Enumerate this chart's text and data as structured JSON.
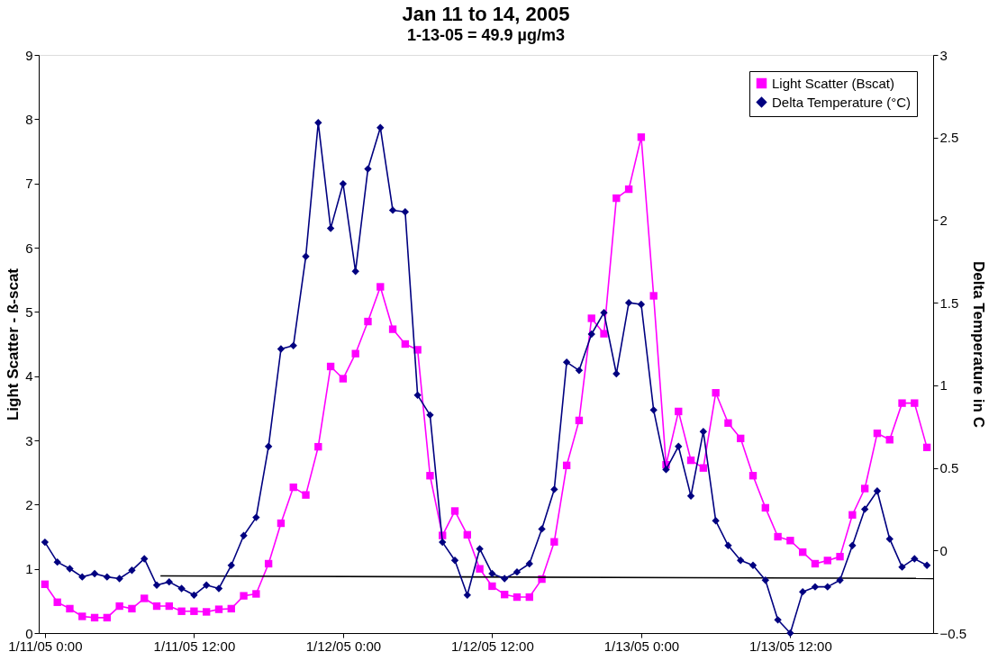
{
  "chart_data": {
    "type": "line",
    "title": "Jan 11 to 14, 2005",
    "subtitle": "1-13-05 = 49.9 µg/m3",
    "ylabel": "Light Scatter - ß-scat",
    "y2label": "Delta Temperature in C",
    "x": [
      "2005-01-11T00:00",
      "2005-01-11T01:00",
      "2005-01-11T02:00",
      "2005-01-11T03:00",
      "2005-01-11T04:00",
      "2005-01-11T05:00",
      "2005-01-11T06:00",
      "2005-01-11T07:00",
      "2005-01-11T08:00",
      "2005-01-11T09:00",
      "2005-01-11T10:00",
      "2005-01-11T11:00",
      "2005-01-11T12:00",
      "2005-01-11T13:00",
      "2005-01-11T14:00",
      "2005-01-11T15:00",
      "2005-01-11T16:00",
      "2005-01-11T17:00",
      "2005-01-11T18:00",
      "2005-01-11T19:00",
      "2005-01-11T20:00",
      "2005-01-11T21:00",
      "2005-01-11T22:00",
      "2005-01-11T23:00",
      "2005-01-12T00:00",
      "2005-01-12T01:00",
      "2005-01-12T02:00",
      "2005-01-12T03:00",
      "2005-01-12T04:00",
      "2005-01-12T05:00",
      "2005-01-12T06:00",
      "2005-01-12T07:00",
      "2005-01-12T08:00",
      "2005-01-12T09:00",
      "2005-01-12T10:00",
      "2005-01-12T11:00",
      "2005-01-12T12:00",
      "2005-01-12T13:00",
      "2005-01-12T14:00",
      "2005-01-12T15:00",
      "2005-01-12T16:00",
      "2005-01-12T17:00",
      "2005-01-12T18:00",
      "2005-01-12T19:00",
      "2005-01-12T20:00",
      "2005-01-12T21:00",
      "2005-01-12T22:00",
      "2005-01-12T23:00",
      "2005-01-13T00:00",
      "2005-01-13T01:00",
      "2005-01-13T02:00",
      "2005-01-13T03:00",
      "2005-01-13T04:00",
      "2005-01-13T05:00",
      "2005-01-13T06:00",
      "2005-01-13T07:00",
      "2005-01-13T08:00",
      "2005-01-13T09:00",
      "2005-01-13T10:00",
      "2005-01-13T11:00",
      "2005-01-13T12:00",
      "2005-01-13T13:00",
      "2005-01-13T14:00",
      "2005-01-13T15:00",
      "2005-01-13T16:00",
      "2005-01-13T17:00",
      "2005-01-13T18:00",
      "2005-01-13T19:00",
      "2005-01-13T20:00",
      "2005-01-13T21:00",
      "2005-01-13T22:00",
      "2005-01-13T23:00"
    ],
    "xlim": [
      "2005-01-10T23:30",
      "2005-01-13T23:30"
    ],
    "xticks": [
      {
        "value": "2005-01-11T00:00",
        "label": "1/11/05 0:00"
      },
      {
        "value": "2005-01-11T12:00",
        "label": "1/11/05 12:00"
      },
      {
        "value": "2005-01-12T00:00",
        "label": "1/12/05 0:00"
      },
      {
        "value": "2005-01-12T12:00",
        "label": "1/12/05 12:00"
      },
      {
        "value": "2005-01-13T00:00",
        "label": "1/13/05 0:00"
      },
      {
        "value": "2005-01-13T12:00",
        "label": "1/13/05 12:00"
      }
    ],
    "ylim": [
      0,
      9
    ],
    "yticks": [
      0,
      1,
      2,
      3,
      4,
      5,
      6,
      7,
      8,
      9
    ],
    "y2lim": [
      -0.5,
      3
    ],
    "y2ticks": [
      -0.5,
      0,
      0.5,
      1,
      1.5,
      2,
      2.5,
      3
    ],
    "grid": false,
    "legend": "top right",
    "series": [
      {
        "name": "Light Scatter (Bscat)",
        "color": "#ff00ff",
        "marker": "square",
        "values": [
          0.76,
          0.48,
          0.38,
          0.26,
          0.24,
          0.24,
          0.42,
          0.38,
          0.54,
          0.42,
          0.42,
          0.34,
          0.34,
          0.33,
          0.37,
          0.38,
          0.58,
          0.61,
          1.08,
          1.71,
          2.27,
          2.15,
          2.9,
          4.15,
          3.96,
          4.35,
          4.85,
          5.39,
          4.73,
          4.5,
          4.41,
          2.45,
          1.52,
          1.9,
          1.53,
          1.0,
          0.73,
          0.6,
          0.56,
          0.56,
          0.84,
          1.42,
          2.61,
          3.31,
          4.9,
          4.66,
          6.77,
          6.91,
          7.72,
          5.25,
          2.62,
          3.45,
          2.69,
          2.57,
          3.74,
          3.27,
          3.03,
          2.45,
          1.95,
          1.5,
          1.44,
          1.26,
          1.08,
          1.13,
          1.19,
          1.84,
          2.25,
          3.11,
          3.01,
          3.58,
          3.58,
          2.89
        ]
      },
      {
        "name": "Delta Temperature (°C)",
        "color": "#000080",
        "marker": "diamond",
        "axis": "y2",
        "values": [
          0.05,
          -0.07,
          -0.11,
          -0.16,
          -0.14,
          -0.16,
          -0.17,
          -0.12,
          -0.05,
          -0.21,
          -0.19,
          -0.23,
          -0.27,
          -0.21,
          -0.23,
          -0.09,
          0.09,
          0.2,
          0.63,
          1.22,
          1.24,
          1.78,
          2.59,
          1.95,
          2.22,
          1.69,
          2.31,
          2.56,
          2.06,
          2.05,
          0.94,
          0.82,
          0.05,
          -0.06,
          -0.27,
          0.01,
          -0.14,
          -0.17,
          -0.13,
          -0.08,
          0.13,
          0.37,
          1.14,
          1.09,
          1.31,
          1.44,
          1.07,
          1.5,
          1.49,
          0.85,
          0.49,
          0.63,
          0.33,
          0.72,
          0.18,
          0.03,
          -0.06,
          -0.09,
          -0.18,
          -0.42,
          -0.5,
          -0.25,
          -0.22,
          -0.22,
          -0.18,
          0.03,
          0.25,
          0.36,
          0.07,
          -0.1,
          -0.05,
          -0.09
        ]
      },
      {
        "color": "#000000",
        "marker": "none",
        "x": [
          "2005-01-11T09:18",
          "2005-01-13T23:30"
        ],
        "values": [
          0.89,
          0.85
        ]
      }
    ]
  }
}
